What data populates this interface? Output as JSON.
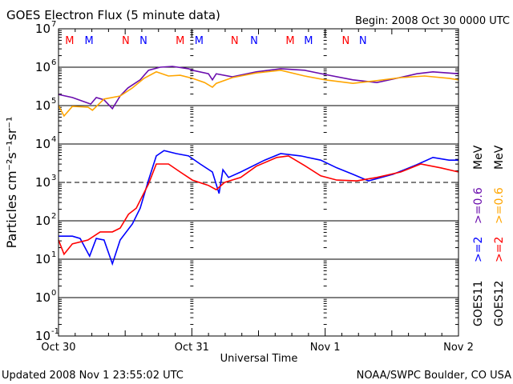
{
  "chart_data": {
    "type": "line",
    "title": "GOES Electron Flux (5 minute data)",
    "begin_label": "Begin: 2008 Oct 30 0000 UTC",
    "xlabel": "Universal Time",
    "ylabel": "Particles cm⁻²s⁻¹sr⁻¹",
    "yscale": "log",
    "ylim": [
      0.1,
      10000000
    ],
    "xlim_hours": [
      0,
      72
    ],
    "y_ticks": [
      {
        "exp": 7,
        "label": "10",
        "sup": "7"
      },
      {
        "exp": 6,
        "label": "10",
        "sup": "6"
      },
      {
        "exp": 5,
        "label": "10",
        "sup": "5"
      },
      {
        "exp": 4,
        "label": "10",
        "sup": "4"
      },
      {
        "exp": 3,
        "label": "10",
        "sup": "3"
      },
      {
        "exp": 2,
        "label": "10",
        "sup": "2"
      },
      {
        "exp": 1,
        "label": "10",
        "sup": "1"
      },
      {
        "exp": 0,
        "label": "10",
        "sup": "0"
      },
      {
        "exp": -1,
        "label": "10",
        "sup": "-1"
      }
    ],
    "x_ticks": [
      {
        "hour": 0,
        "label": "Oct 30"
      },
      {
        "hour": 24,
        "label": "Oct 31"
      },
      {
        "hour": 48,
        "label": "Nov 1"
      },
      {
        "hour": 72,
        "label": "Nov 2"
      }
    ],
    "solid_gridlines_exp": [
      6,
      5,
      4,
      2,
      1,
      0
    ],
    "dashed_gridlines_exp": [
      3
    ],
    "markers": [
      {
        "hour": 2.0,
        "label": "M",
        "color": "#ff0000"
      },
      {
        "hour": 5.5,
        "label": "M",
        "color": "#0000ff"
      },
      {
        "hour": 12.1,
        "label": "N",
        "color": "#ff0000"
      },
      {
        "hour": 15.3,
        "label": "N",
        "color": "#0000ff"
      },
      {
        "hour": 21.9,
        "label": "M",
        "color": "#ff0000"
      },
      {
        "hour": 25.3,
        "label": "M",
        "color": "#0000ff"
      },
      {
        "hour": 31.7,
        "label": "N",
        "color": "#ff0000"
      },
      {
        "hour": 35.2,
        "label": "N",
        "color": "#0000ff"
      },
      {
        "hour": 41.7,
        "label": "M",
        "color": "#ff0000"
      },
      {
        "hour": 45.0,
        "label": "M",
        "color": "#0000ff"
      },
      {
        "hour": 51.7,
        "label": "N",
        "color": "#ff0000"
      },
      {
        "hour": 54.8,
        "label": "N",
        "color": "#0000ff"
      }
    ],
    "legend": {
      "placement": "right",
      "goes11": {
        "sat": "GOES11",
        "e2": ">=2",
        "e06": ">=0.6",
        "unit": "MeV"
      },
      "goes12": {
        "sat": "GOES12",
        "e2": ">=2",
        "e06": ">=0.6",
        "unit": "MeV"
      }
    },
    "series": [
      {
        "name": "GOES11 >=0.6 MeV",
        "color": "#6a0dad",
        "hours": [
          0,
          2.5,
          5.8,
          6.8,
          8.2,
          9.7,
          11.1,
          12.5,
          14.7,
          16.2,
          18.3,
          20.5,
          23.4,
          24.1,
          27.0,
          27.7,
          28.4,
          31.3,
          35.6,
          40.0,
          44.3,
          48.0,
          53.0,
          57.3,
          60.2,
          64.5,
          67.4,
          72.0
        ],
        "log10_flux": [
          5.29,
          5.21,
          5.04,
          5.21,
          5.15,
          4.92,
          5.25,
          5.46,
          5.67,
          5.92,
          6.0,
          6.02,
          5.96,
          5.92,
          5.83,
          5.67,
          5.83,
          5.75,
          5.88,
          5.96,
          5.92,
          5.81,
          5.67,
          5.6,
          5.69,
          5.83,
          5.88,
          5.83
        ]
      },
      {
        "name": "GOES12 >=0.6 MeV",
        "color": "#ffa500",
        "hours": [
          0,
          1.0,
          2.5,
          5.3,
          6.1,
          8.2,
          11.1,
          13.3,
          15.4,
          17.6,
          19.8,
          21.9,
          24.1,
          26.3,
          27.7,
          28.4,
          31.3,
          35.6,
          40.0,
          44.3,
          48.0,
          53.0,
          57.3,
          61.6,
          65.9,
          70.3,
          72.0
        ],
        "log10_flux": [
          5.0,
          4.73,
          4.98,
          4.96,
          4.88,
          5.17,
          5.25,
          5.46,
          5.71,
          5.88,
          5.77,
          5.79,
          5.71,
          5.6,
          5.48,
          5.58,
          5.73,
          5.85,
          5.92,
          5.77,
          5.67,
          5.58,
          5.65,
          5.73,
          5.77,
          5.71,
          5.67
        ]
      },
      {
        "name": "GOES11 >=2 MeV",
        "color": "#0000ff",
        "hours": [
          0,
          2.5,
          3.9,
          5.6,
          6.8,
          8.2,
          9.7,
          11.1,
          13.3,
          14.7,
          16.2,
          17.6,
          19.0,
          21.2,
          23.4,
          25.5,
          27.7,
          28.9,
          29.6,
          30.6,
          32.8,
          37.1,
          40.0,
          43.6,
          47.2,
          50.1,
          53.0,
          55.8,
          60.2,
          64.5,
          67.4,
          70.3,
          72.0
        ],
        "log10_flux": [
          1.6,
          1.6,
          1.54,
          1.08,
          1.54,
          1.5,
          0.88,
          1.5,
          1.92,
          2.33,
          3.06,
          3.69,
          3.83,
          3.75,
          3.69,
          3.48,
          3.27,
          2.71,
          3.33,
          3.13,
          3.27,
          3.58,
          3.75,
          3.69,
          3.58,
          3.38,
          3.21,
          3.04,
          3.21,
          3.46,
          3.65,
          3.58,
          3.58
        ]
      },
      {
        "name": "GOES12 >=2 MeV",
        "color": "#ff0000",
        "hours": [
          0,
          1.0,
          2.5,
          5.3,
          7.5,
          9.7,
          11.1,
          12.6,
          14.0,
          16.2,
          17.6,
          19.8,
          21.9,
          24.1,
          27.0,
          28.4,
          29.9,
          32.8,
          35.6,
          39.3,
          41.4,
          44.3,
          47.2,
          50.1,
          53.7,
          57.3,
          61.6,
          65.2,
          68.8,
          72.0
        ],
        "log10_flux": [
          1.5,
          1.13,
          1.4,
          1.5,
          1.71,
          1.71,
          1.81,
          2.17,
          2.33,
          2.96,
          3.48,
          3.48,
          3.27,
          3.06,
          2.92,
          2.81,
          3.0,
          3.13,
          3.42,
          3.65,
          3.69,
          3.44,
          3.17,
          3.06,
          3.04,
          3.13,
          3.27,
          3.48,
          3.38,
          3.27
        ]
      }
    ]
  },
  "footer": {
    "updated": "Updated 2008 Nov  1 23:55:02 UTC",
    "source": "NOAA/SWPC Boulder, CO USA"
  }
}
